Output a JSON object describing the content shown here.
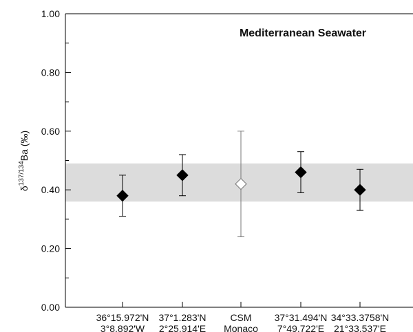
{
  "chart_data": {
    "type": "errorpoint",
    "annotation": "Mediterranean Seawater",
    "y_label": {
      "prefix": "δ",
      "superscript": "137/134",
      "suffix": "Ba (‰)"
    },
    "categories": [
      [
        "36°15.972'N",
        "3°8.892'W"
      ],
      [
        "37°1.283'N",
        "2°25.914'E"
      ],
      [
        "CSM",
        "Monaco"
      ],
      [
        "37°31.494'N",
        "7°49.722'E"
      ],
      [
        "34°33.3758'N",
        "21°33.537'E"
      ]
    ],
    "values": [
      0.38,
      0.45,
      0.42,
      0.46,
      0.4
    ],
    "errors": [
      0.07,
      0.07,
      0.18,
      0.07,
      0.07
    ],
    "marker_colors": [
      "#000000",
      "#000000",
      "#ffffff",
      "#000000",
      "#000000"
    ],
    "band": [
      0.36,
      0.49
    ],
    "band_color": "#dcdcdc",
    "ylim": [
      0,
      1
    ],
    "yticks": [
      {
        "value": 0,
        "label": "0.00"
      },
      {
        "value": 0.2,
        "label": "0.20"
      },
      {
        "value": 0.4,
        "label": "0.40"
      },
      {
        "value": 0.6,
        "label": "0.60"
      },
      {
        "value": 0.8,
        "label": "0.80"
      },
      {
        "value": 1,
        "label": "1.00"
      }
    ],
    "yminorticks": [
      0.1,
      0.3,
      0.5,
      0.7,
      0.9
    ]
  }
}
